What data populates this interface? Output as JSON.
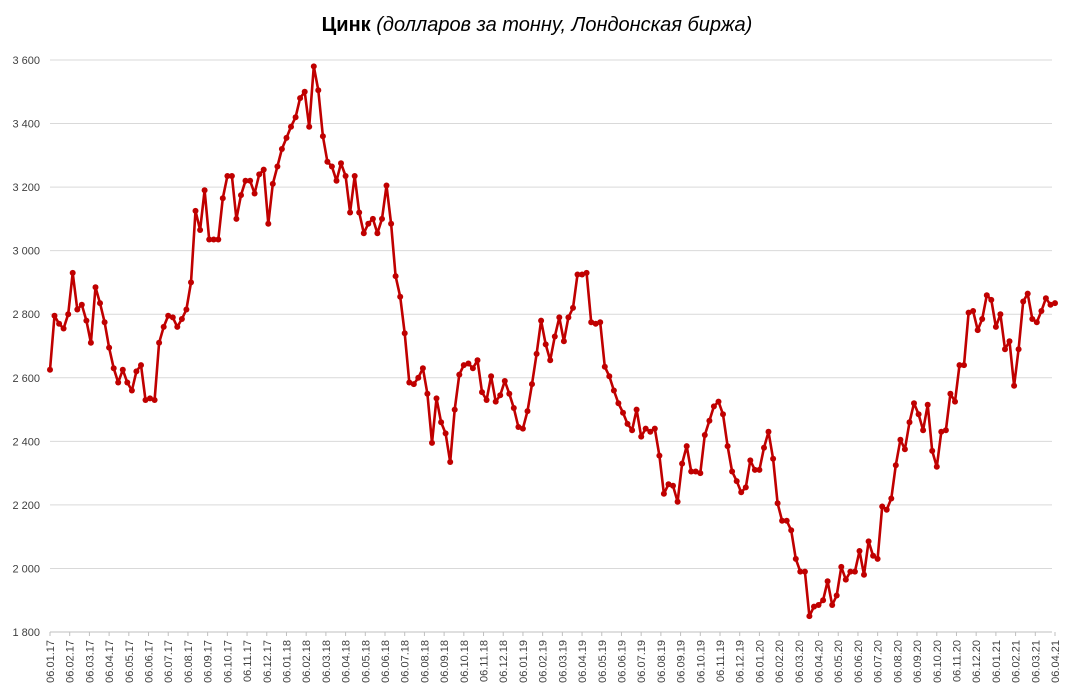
{
  "chart_data": {
    "type": "line",
    "title": "Цинк",
    "subtitle": "(долларов за тонну, Лондонская биржа)",
    "xlabel": "",
    "ylabel": "",
    "ylim": [
      1800,
      3600
    ],
    "yticks": [
      "1 800",
      "2 000",
      "2 200",
      "2 400",
      "2 600",
      "2 800",
      "3 000",
      "3 200",
      "3 400",
      "3 600"
    ],
    "grid": "horizontal",
    "legend": "none",
    "color": "#C00000",
    "x_ticks": [
      "06.01.17",
      "06.02.17",
      "06.03.17",
      "06.04.17",
      "06.05.17",
      "06.06.17",
      "06.07.17",
      "06.08.17",
      "06.09.17",
      "06.10.17",
      "06.11.17",
      "06.12.17",
      "06.01.18",
      "06.02.18",
      "06.03.18",
      "06.04.18",
      "06.05.18",
      "06.06.18",
      "06.07.18",
      "06.08.18",
      "06.09.18",
      "06.10.18",
      "06.11.18",
      "06.12.18",
      "06.01.19",
      "06.02.19",
      "06.03.19",
      "06.04.19",
      "06.05.19",
      "06.06.19",
      "06.07.19",
      "06.08.19",
      "06.09.19",
      "06.10.19",
      "06.11.19",
      "06.12.19",
      "06.01.20",
      "06.02.20",
      "06.03.20",
      "06.04.20",
      "06.05.20",
      "06.06.20",
      "06.07.20",
      "06.08.20",
      "06.09.20",
      "06.10.20",
      "06.11.20",
      "06.12.20",
      "06.01.21",
      "06.02.21",
      "06.03.21",
      "06.04.21"
    ],
    "series": [
      {
        "values": [
          2625,
          2795,
          2770,
          2755,
          2800,
          2930,
          2815,
          2830,
          2780,
          2710,
          2885,
          2835,
          2775,
          2695,
          2630,
          2585,
          2625,
          2585,
          2560,
          2620,
          2640,
          2530,
          2535,
          2530,
          2710,
          2760,
          2795,
          2790,
          2760,
          2785,
          2815,
          2900,
          3125,
          3065,
          3190,
          3035,
          3035,
          3035,
          3165,
          3235,
          3235,
          3100,
          3175,
          3220,
          3220,
          3180,
          3240,
          3255,
          3085,
          3210,
          3265,
          3320,
          3355,
          3390,
          3420,
          3480,
          3500,
          3390,
          3580,
          3505,
          3360,
          3280,
          3265,
          3220,
          3275,
          3235,
          3120,
          3235,
          3120,
          3055,
          3085,
          3100,
          3055,
          3100,
          3205,
          3085,
          2920,
          2855,
          2740,
          2585,
          2580,
          2600,
          2630,
          2550,
          2395,
          2535,
          2460,
          2425,
          2335,
          2500,
          2610,
          2640,
          2645,
          2630,
          2655,
          2555,
          2530,
          2605,
          2525,
          2545,
          2590,
          2550,
          2505,
          2445,
          2440,
          2495,
          2580,
          2675,
          2780,
          2705,
          2655,
          2730,
          2790,
          2715,
          2790,
          2820,
          2925,
          2925,
          2930,
          2775,
          2770,
          2775,
          2635,
          2605,
          2560,
          2520,
          2490,
          2455,
          2435,
          2500,
          2415,
          2440,
          2430,
          2440,
          2355,
          2235,
          2265,
          2260,
          2210,
          2330,
          2385,
          2305,
          2305,
          2300,
          2420,
          2465,
          2510,
          2525,
          2485,
          2385,
          2305,
          2275,
          2240,
          2255,
          2340,
          2310,
          2310,
          2380,
          2430,
          2345,
          2205,
          2150,
          2150,
          2120,
          2030,
          1990,
          1990,
          1850,
          1880,
          1885,
          1900,
          1960,
          1885,
          1915,
          2005,
          1965,
          1990,
          1990,
          2055,
          1980,
          2085,
          2040,
          2030,
          2195,
          2185,
          2220,
          2325,
          2405,
          2375,
          2460,
          2520,
          2485,
          2435,
          2515,
          2370,
          2320,
          2430,
          2435,
          2550,
          2525,
          2640,
          2640,
          2805,
          2810,
          2750,
          2785,
          2860,
          2845,
          2760,
          2800,
          2690,
          2715,
          2575,
          2690,
          2840,
          2865,
          2785,
          2775,
          2810,
          2850,
          2830,
          2835
        ]
      }
    ]
  }
}
